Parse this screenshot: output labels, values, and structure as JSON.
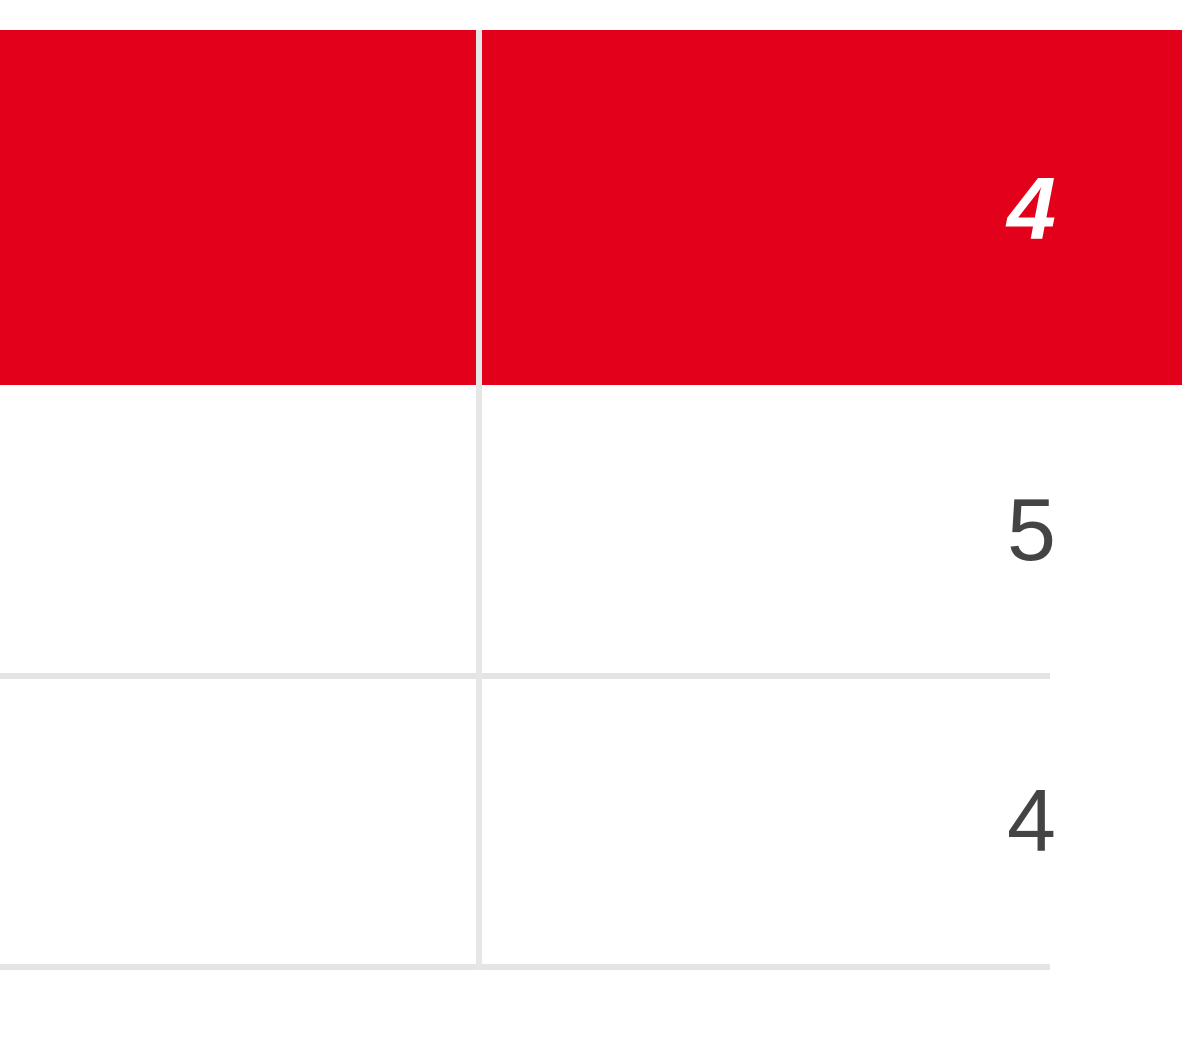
{
  "table": {
    "header": [
      "",
      "4"
    ],
    "rows": [
      [
        "",
        "5"
      ],
      [
        "",
        "4"
      ]
    ]
  },
  "colors": {
    "header_bg": "#e2001a",
    "header_text": "#ffffff",
    "body_text": "#444444",
    "border": "#e4e4e4"
  }
}
